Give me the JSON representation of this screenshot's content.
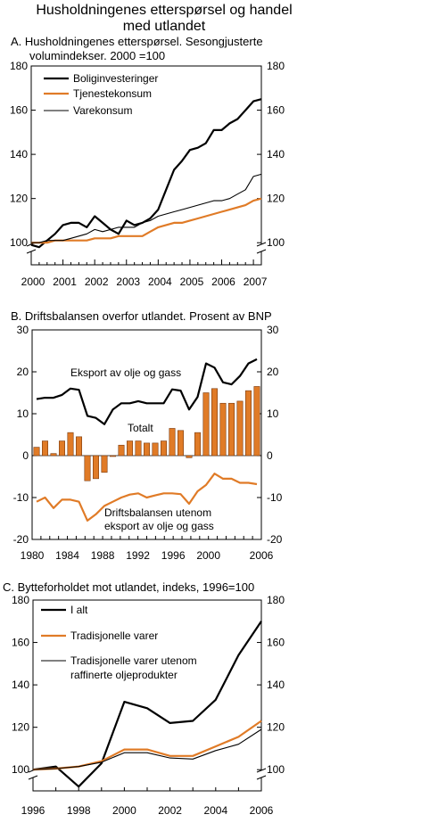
{
  "figure": {
    "title_line1": "Husholdningenes etterspørsel og handel",
    "title_line2": "med utlandet"
  },
  "colors": {
    "orange": "#e07b27",
    "black": "#000000",
    "bar_edge": "#7a3b10"
  },
  "chart_data": [
    {
      "id": "A",
      "type": "line",
      "title_line1": "A.  Husholdningenes etterspørsel. Sesongjusterte",
      "title_line2": "volumindekser. 2000 =100",
      "ylim": [
        90,
        180
      ],
      "yticks": [
        100,
        120,
        140,
        160,
        180
      ],
      "xlim": [
        2000,
        2007.25
      ],
      "xticks": [
        "2000",
        "2001",
        "2002",
        "2003",
        "2004",
        "2005",
        "2006",
        "2007"
      ],
      "axis_break": true,
      "legend_position": "top-left",
      "series": [
        {
          "name": "Boliginvesteringer",
          "color": "#000000",
          "width": 2.2,
          "x": [
            2000,
            2000.25,
            2000.5,
            2000.75,
            2001,
            2001.25,
            2001.5,
            2001.75,
            2002,
            2002.25,
            2002.5,
            2002.75,
            2003,
            2003.25,
            2003.5,
            2003.75,
            2004,
            2004.25,
            2004.5,
            2004.75,
            2005,
            2005.25,
            2005.5,
            2005.75,
            2006,
            2006.25,
            2006.5,
            2006.75,
            2007,
            2007.25
          ],
          "y": [
            99,
            98,
            101,
            104,
            108,
            109,
            109,
            107,
            112,
            109,
            106,
            104,
            110,
            108,
            109,
            111,
            115,
            124,
            133,
            137,
            142,
            143,
            145,
            151,
            151,
            154,
            156,
            160,
            164,
            165
          ]
        },
        {
          "name": "Tjenestekonsum",
          "color": "#e07b27",
          "width": 2.2,
          "x": [
            2000,
            2000.25,
            2000.5,
            2000.75,
            2001,
            2001.25,
            2001.5,
            2001.75,
            2002,
            2002.25,
            2002.5,
            2002.75,
            2003,
            2003.25,
            2003.5,
            2003.75,
            2004,
            2004.25,
            2004.5,
            2004.75,
            2005,
            2005.25,
            2005.5,
            2005.75,
            2006,
            2006.25,
            2006.5,
            2006.75,
            2007,
            2007.25
          ],
          "y": [
            100,
            100,
            100,
            101,
            101,
            101,
            101,
            101,
            102,
            102,
            102,
            103,
            103,
            103,
            103,
            105,
            107,
            108,
            109,
            109,
            110,
            111,
            112,
            113,
            114,
            115,
            116,
            117,
            119,
            120
          ]
        },
        {
          "name": "Varekonsum",
          "color": "#000000",
          "width": 1.1,
          "x": [
            2000,
            2000.25,
            2000.5,
            2000.75,
            2001,
            2001.25,
            2001.5,
            2001.75,
            2002,
            2002.25,
            2002.5,
            2002.75,
            2003,
            2003.25,
            2003.5,
            2003.75,
            2004,
            2004.25,
            2004.5,
            2004.75,
            2005,
            2005.25,
            2005.5,
            2005.75,
            2006,
            2006.25,
            2006.5,
            2006.75,
            2007,
            2007.25
          ],
          "y": [
            100,
            100,
            101,
            101,
            101,
            102,
            103,
            104,
            106,
            105,
            106,
            107,
            107,
            107,
            109,
            110,
            112,
            113,
            114,
            115,
            116,
            117,
            118,
            119,
            119,
            120,
            122,
            124,
            130,
            131
          ]
        }
      ]
    },
    {
      "id": "B",
      "type": "bar",
      "title": "B. Driftsbalansen overfor utlandet. Prosent av BNP",
      "ylim": [
        -20,
        30
      ],
      "yticks": [
        -20,
        -10,
        0,
        10,
        20,
        30
      ],
      "xlim": [
        1980,
        2006
      ],
      "xticks": [
        "1980",
        "1984",
        "1988",
        "1992",
        "1996",
        "2000",
        "2006"
      ],
      "bar_series": {
        "name": "Totalt",
        "color": "#e07b27",
        "x": [
          1980,
          1981,
          1982,
          1983,
          1984,
          1985,
          1986,
          1987,
          1988,
          1989,
          1990,
          1991,
          1992,
          1993,
          1994,
          1995,
          1996,
          1997,
          1998,
          1999,
          2000,
          2001,
          2002,
          2003,
          2004,
          2005,
          2006
        ],
        "values": [
          2,
          3.5,
          0.5,
          3.5,
          5.5,
          4.5,
          -6,
          -5.5,
          -4,
          -0.2,
          2.5,
          3.5,
          3.5,
          3,
          3,
          3.5,
          6.5,
          6,
          -0.5,
          5.5,
          15,
          16,
          12.5,
          12.5,
          13,
          15.5,
          16.5
        ]
      },
      "series": [
        {
          "name": "Eksport av olje og gass",
          "color": "#000000",
          "x": [
            1980,
            1981,
            1982,
            1983,
            1984,
            1985,
            1986,
            1987,
            1988,
            1989,
            1990,
            1991,
            1992,
            1993,
            1994,
            1995,
            1996,
            1997,
            1998,
            1999,
            2000,
            2001,
            2002,
            2003,
            2004,
            2005,
            2006
          ],
          "values": [
            13.5,
            13.8,
            13.8,
            14.5,
            16,
            15.7,
            9.5,
            9,
            7.5,
            11,
            12.5,
            12.5,
            13,
            12.5,
            12.5,
            12.5,
            15.8,
            15.5,
            11,
            14,
            22,
            21,
            17.5,
            17,
            19,
            22,
            23
          ]
        },
        {
          "name": "Driftsbalansen utenom eksport av olje og gass",
          "color": "#e07b27",
          "x": [
            1980,
            1981,
            1982,
            1983,
            1984,
            1985,
            1986,
            1987,
            1988,
            1989,
            1990,
            1991,
            1992,
            1993,
            1994,
            1995,
            1996,
            1997,
            1998,
            1999,
            2000,
            2001,
            2002,
            2003,
            2004,
            2005,
            2006
          ],
          "values": [
            -11,
            -10,
            -12.5,
            -10.5,
            -10.5,
            -11,
            -15.5,
            -14,
            -12,
            -11,
            -10,
            -9.3,
            -9,
            -10,
            -9.5,
            -9,
            -9,
            -9.2,
            -11.5,
            -8.5,
            -7,
            -4.3,
            -5.5,
            -5.5,
            -6.5,
            -6.5,
            -6.8
          ]
        }
      ],
      "labels": {
        "export": "Eksport av olje og gass",
        "total": "Totalt",
        "non_oil_line1": "Driftsbalansen utenom",
        "non_oil_line2": "eksport av olje og gass"
      }
    },
    {
      "id": "C",
      "type": "line",
      "title": "C. Bytteforholdet mot utlandet, indeks, 1996=100",
      "ylim": [
        90,
        180
      ],
      "yticks": [
        100,
        120,
        140,
        160,
        180
      ],
      "xlim": [
        1996,
        2006
      ],
      "xticks": [
        "1996",
        "1998",
        "2000",
        "2002",
        "2004",
        "2006"
      ],
      "axis_break": true,
      "legend_position": "top-left",
      "series": [
        {
          "name": "I alt",
          "color": "#000000",
          "width": 2.2,
          "x": [
            1996,
            1997,
            1998,
            1999,
            2000,
            2001,
            2002,
            2003,
            2004,
            2005,
            2006
          ],
          "y": [
            100,
            101.5,
            92,
            103,
            132,
            129,
            122,
            123,
            133,
            154,
            170
          ]
        },
        {
          "name": "Tradisjonelle varer",
          "color": "#e07b27",
          "width": 2.2,
          "x": [
            1996,
            1997,
            1998,
            1999,
            2000,
            2001,
            2002,
            2003,
            2004,
            2005,
            2006
          ],
          "y": [
            100,
            100.5,
            101.5,
            104,
            109.5,
            109.5,
            106.5,
            106.5,
            111,
            115.5,
            123
          ]
        },
        {
          "name_line1": "Tradisjonelle varer utenom",
          "name_line2": "raffinerte oljeprodukter",
          "color": "#000000",
          "width": 1.1,
          "x": [
            1996,
            1997,
            1998,
            1999,
            2000,
            2001,
            2002,
            2003,
            2004,
            2005,
            2006
          ],
          "y": [
            100,
            100.5,
            101.5,
            103.5,
            108,
            108,
            105.5,
            105,
            109,
            112,
            119
          ]
        }
      ]
    }
  ]
}
